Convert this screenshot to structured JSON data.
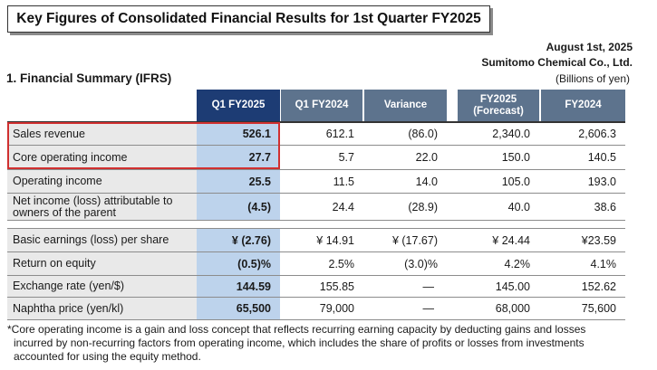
{
  "title": "Key Figures of Consolidated Financial Results for 1st Quarter FY2025",
  "date": "August 1st, 2025",
  "company": "Sumitomo Chemical Co., Ltd.",
  "units": "(Billions of yen)",
  "section_title": "1. Financial Summary (IFRS)",
  "columns": {
    "current": "Q1 FY2025",
    "prior": "Q1 FY2024",
    "variance": "Variance",
    "forecast_line1": "FY2025",
    "forecast_line2": "(Forecast)",
    "fy_prior": "FY2024"
  },
  "rows": [
    {
      "label": "Sales revenue",
      "current": "526.1",
      "prior": "612.1",
      "variance": "(86.0)",
      "forecast": "2,340.0",
      "fy_prior": "2,606.3"
    },
    {
      "label": "Core operating income",
      "current": "27.7",
      "prior": "5.7",
      "variance": "22.0",
      "forecast": "150.0",
      "fy_prior": "140.5"
    },
    {
      "label": "Operating income",
      "current": "25.5",
      "prior": "11.5",
      "variance": "14.0",
      "forecast": "105.0",
      "fy_prior": "193.0"
    },
    {
      "label_line1": "Net income (loss) attributable to",
      "label_line2": "owners of the parent",
      "current": "(4.5)",
      "prior": "24.4",
      "variance": "(28.9)",
      "forecast": "40.0",
      "fy_prior": "38.6"
    },
    {
      "label": "Basic earnings (loss) per share",
      "current": "¥ (2.76)",
      "prior": "¥ 14.91",
      "variance": "¥ (17.67)",
      "forecast": "¥ 24.44",
      "fy_prior": "¥23.59"
    },
    {
      "label": "Return on equity",
      "current": "(0.5)%",
      "prior": "2.5%",
      "variance": "(3.0)%",
      "forecast": "4.2%",
      "fy_prior": "4.1%"
    },
    {
      "label": "Exchange rate (yen/$)",
      "current": "144.59",
      "prior": "155.85",
      "variance": "—",
      "forecast": "145.00",
      "fy_prior": "152.62"
    },
    {
      "label": "Naphtha price (yen/kl)",
      "current": "65,500",
      "prior": "79,000",
      "variance": "—",
      "forecast": "68,000",
      "fy_prior": "75,600"
    }
  ],
  "footnote": {
    "line1": "*Core operating income is a gain and loss concept that reflects recurring earning capacity by deducting gains and losses",
    "line2": "incurred by non-recurring factors from operating income, which includes the share of profits or losses from investments",
    "line3": "accounted for using the equity method."
  },
  "colors": {
    "header": "#5d738d",
    "header_active": "#1d3c74",
    "current_col": "#bdd3ec",
    "highlight": "#d03030"
  }
}
